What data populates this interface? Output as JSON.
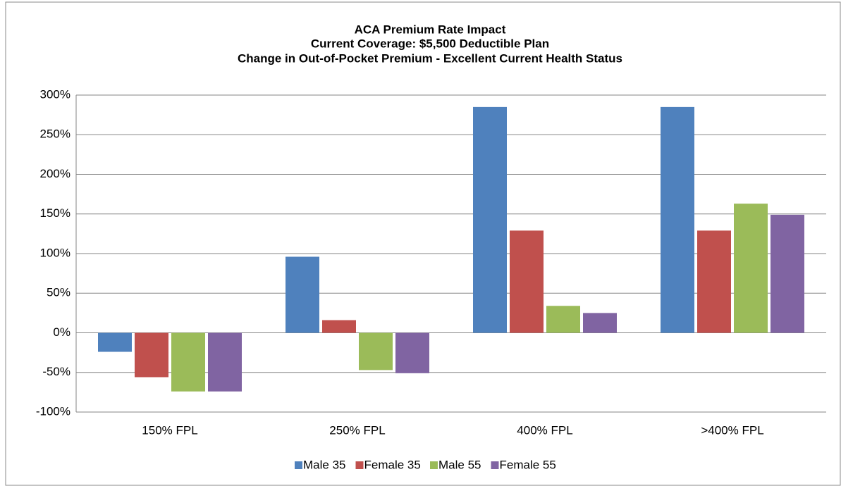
{
  "chart_data": {
    "type": "bar",
    "title": [
      "ACA Premium Rate Impact",
      "Current Coverage: $5,500 Deductible Plan",
      "Change in Out-of-Pocket Premium - Excellent Current Health Status"
    ],
    "categories": [
      "150% FPL",
      "250% FPL",
      "400% FPL",
      ">400% FPL"
    ],
    "series": [
      {
        "name": "Male 35",
        "color": "#4f81bd",
        "values": [
          -24,
          96,
          285,
          285
        ]
      },
      {
        "name": "Female 35",
        "color": "#c0504d",
        "values": [
          -56,
          16,
          129,
          129
        ]
      },
      {
        "name": "Male 55",
        "color": "#9bbb59",
        "values": [
          -74,
          -47,
          34,
          163
        ]
      },
      {
        "name": "Female 55",
        "color": "#8064a2",
        "values": [
          -74,
          -51,
          25,
          149
        ]
      }
    ],
    "ylim": [
      -100,
      300
    ],
    "yticks": [
      {
        "value": -100,
        "label": "-100%"
      },
      {
        "value": -50,
        "label": "-50%"
      },
      {
        "value": 0,
        "label": "0%"
      },
      {
        "value": 50,
        "label": "50%"
      },
      {
        "value": 100,
        "label": "100%"
      },
      {
        "value": 150,
        "label": "150%"
      },
      {
        "value": 200,
        "label": "200%"
      },
      {
        "value": 250,
        "label": "250%"
      },
      {
        "value": 300,
        "label": "300%"
      }
    ],
    "grid": true,
    "legend": "bottom"
  }
}
